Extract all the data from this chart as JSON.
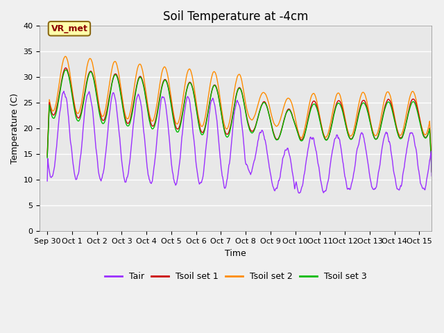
{
  "title": "Soil Temperature at -4cm",
  "xlabel": "Time",
  "ylabel": "Temperature (C)",
  "xlim_days": [
    -0.3,
    15.5
  ],
  "ylim": [
    0,
    40
  ],
  "yticks": [
    0,
    5,
    10,
    15,
    20,
    25,
    30,
    35,
    40
  ],
  "xtick_labels": [
    "Sep 30",
    "Oct 1",
    "Oct 2",
    "Oct 3",
    "Oct 4",
    "Oct 5",
    "Oct 6",
    "Oct 7",
    "Oct 8",
    "Oct 9",
    "Oct 10",
    "Oct 11",
    "Oct 12",
    "Oct 13",
    "Oct 14",
    "Oct 15"
  ],
  "xtick_positions": [
    0,
    1,
    2,
    3,
    4,
    5,
    6,
    7,
    8,
    9,
    10,
    11,
    12,
    13,
    14,
    15
  ],
  "annotation_text": "VR_met",
  "colors": {
    "Tair": "#9B30FF",
    "Tsoil1": "#CC0000",
    "Tsoil2": "#FF8C00",
    "Tsoil3": "#00BB00"
  },
  "plot_bg": "#E8E8E8",
  "fig_bg": "#F0F0F0",
  "legend_labels": [
    "Tair",
    "Tsoil set 1",
    "Tsoil set 2",
    "Tsoil set 3"
  ],
  "title_fontsize": 12,
  "axis_label_fontsize": 9,
  "tick_fontsize": 8
}
